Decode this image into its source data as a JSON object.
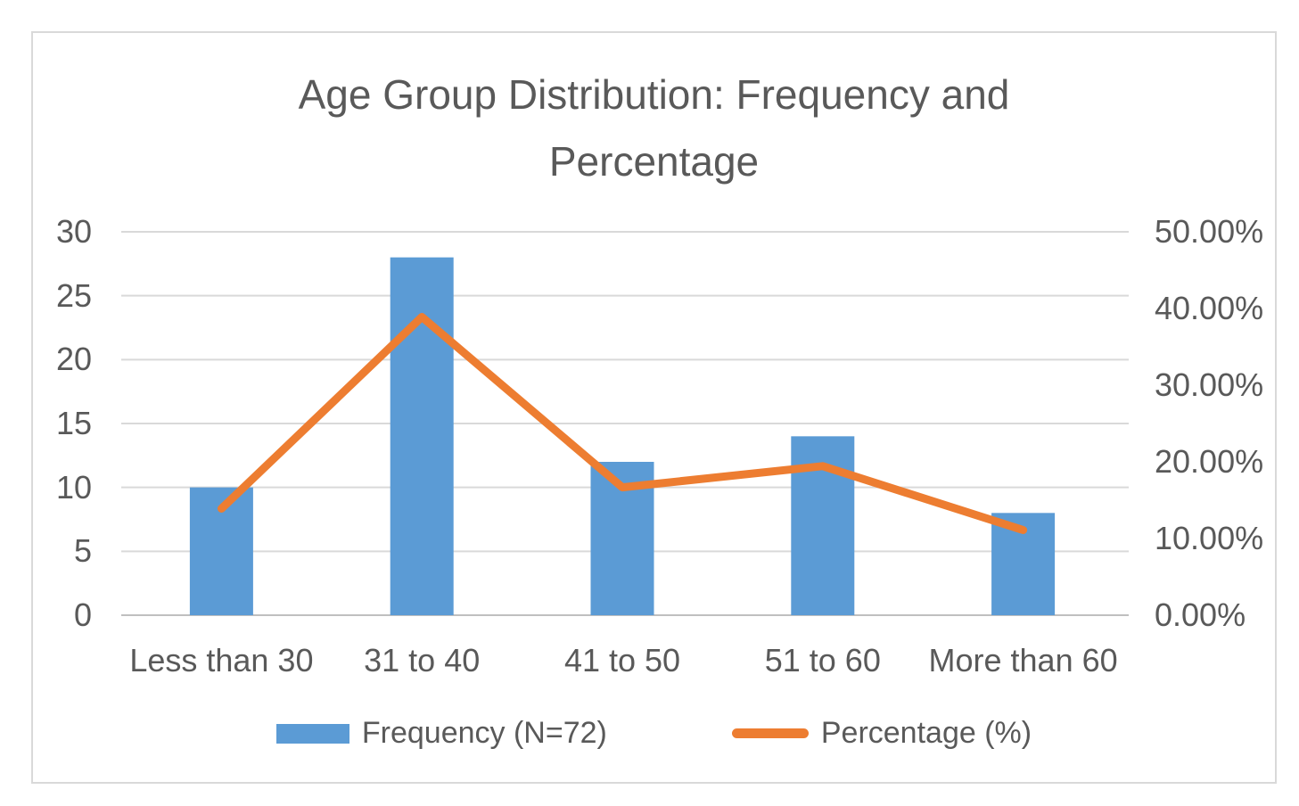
{
  "chart_data": {
    "type": "bar",
    "combo": "bar+line",
    "title": "Age Group Distribution: Frequency and Percentage",
    "categories": [
      "Less than 30",
      "31 to 40",
      "41 to 50",
      "51 to 60",
      "More than 60"
    ],
    "series": [
      {
        "name": "Frequency (N=72)",
        "type": "bar",
        "axis": "left",
        "values": [
          10,
          28,
          12,
          14,
          8
        ],
        "color": "#5B9BD5"
      },
      {
        "name": "Percentage (%)",
        "type": "line",
        "axis": "right",
        "values": [
          13.89,
          38.89,
          16.67,
          19.44,
          11.11
        ],
        "color": "#ED7D31"
      }
    ],
    "axes": {
      "left": {
        "min": 0,
        "max": 30,
        "step": 5,
        "tick_labels": [
          "0",
          "5",
          "10",
          "15",
          "20",
          "25",
          "30"
        ]
      },
      "right": {
        "min": 0,
        "max": 50,
        "step": 10,
        "tick_labels": [
          "0.00%",
          "10.00%",
          "20.00%",
          "30.00%",
          "40.00%",
          "50.00%"
        ]
      }
    },
    "grid": true,
    "legend_position": "bottom",
    "xlabel": "",
    "ylabel": ""
  },
  "colors": {
    "bar": "#5B9BD5",
    "line": "#ED7D31",
    "text": "#595959",
    "gridline": "#D9D9D9",
    "axis_line": "#BFBFBF",
    "border": "#D9D9D9"
  }
}
